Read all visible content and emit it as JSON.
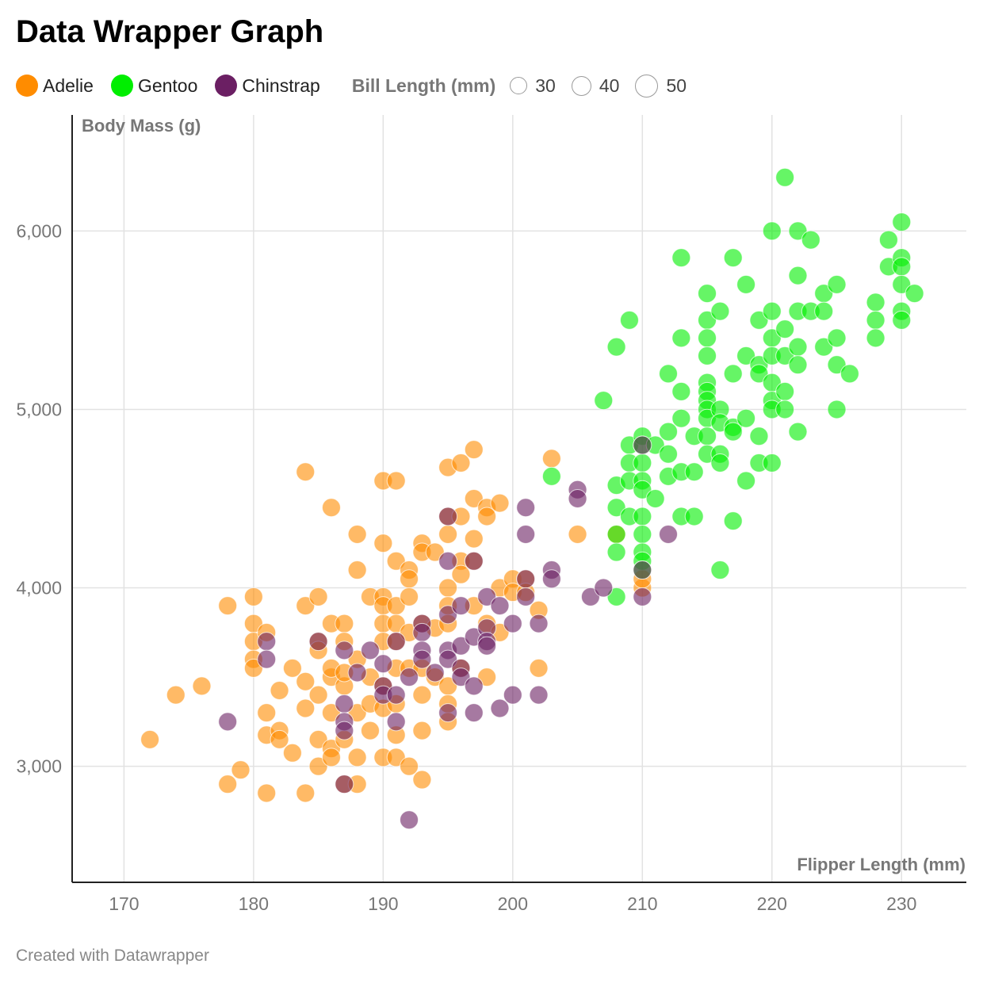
{
  "title": "Data Wrapper Graph",
  "footer": "Created with Datawrapper",
  "legend": {
    "species": [
      {
        "label": "Adelie",
        "color": "#ff8c00"
      },
      {
        "label": "Gentoo",
        "color": "#00ee00"
      },
      {
        "label": "Chinstrap",
        "color": "#6b1f63"
      }
    ],
    "size_title": "Bill Length (mm)",
    "sizes": [
      "30",
      "40",
      "50"
    ]
  },
  "chart_data": {
    "type": "scatter",
    "title": "Data Wrapper Graph",
    "xlabel": "Flipper Length (mm)",
    "ylabel": "Body Mass (g)",
    "xlim": [
      166,
      235
    ],
    "ylim": [
      2350,
      6650
    ],
    "x_ticks": [
      170,
      180,
      190,
      200,
      210,
      220,
      230
    ],
    "x_tick_labels": [
      "170",
      "180",
      "190",
      "200",
      "210",
      "220",
      "230"
    ],
    "y_ticks": [
      3000,
      4000,
      5000,
      6000
    ],
    "y_tick_labels": [
      "3,000",
      "4,000",
      "5,000",
      "6,000"
    ],
    "grid": true,
    "legend_position": "top-left",
    "series": [
      {
        "name": "Adelie",
        "color": "#ff8c00",
        "points": [
          [
            172,
            3150
          ],
          [
            174,
            3400
          ],
          [
            176,
            3450
          ],
          [
            178,
            3900
          ],
          [
            178,
            2900
          ],
          [
            179,
            2980
          ],
          [
            180,
            3950
          ],
          [
            180,
            3800
          ],
          [
            180,
            3700
          ],
          [
            180,
            3600
          ],
          [
            180,
            3550
          ],
          [
            181,
            3750
          ],
          [
            181,
            3300
          ],
          [
            181,
            3175
          ],
          [
            181,
            2850
          ],
          [
            182,
            3200
          ],
          [
            182,
            3150
          ],
          [
            182,
            3425
          ],
          [
            183,
            3550
          ],
          [
            183,
            3075
          ],
          [
            184,
            3900
          ],
          [
            184,
            3475
          ],
          [
            184,
            4650
          ],
          [
            184,
            3325
          ],
          [
            184,
            2850
          ],
          [
            185,
            3950
          ],
          [
            185,
            3700
          ],
          [
            185,
            3650
          ],
          [
            185,
            3400
          ],
          [
            185,
            3150
          ],
          [
            185,
            3000
          ],
          [
            186,
            3800
          ],
          [
            186,
            4450
          ],
          [
            186,
            3500
          ],
          [
            186,
            3550
          ],
          [
            186,
            3300
          ],
          [
            186,
            3100
          ],
          [
            186,
            3050
          ],
          [
            187,
            3800
          ],
          [
            187,
            3700
          ],
          [
            187,
            3450
          ],
          [
            187,
            3525
          ],
          [
            187,
            3150
          ],
          [
            187,
            2900
          ],
          [
            188,
            4300
          ],
          [
            188,
            4100
          ],
          [
            188,
            3600
          ],
          [
            188,
            3300
          ],
          [
            188,
            3050
          ],
          [
            188,
            2900
          ],
          [
            189,
            3950
          ],
          [
            189,
            3500
          ],
          [
            189,
            3350
          ],
          [
            189,
            3200
          ],
          [
            190,
            4600
          ],
          [
            190,
            4250
          ],
          [
            190,
            3950
          ],
          [
            190,
            3900
          ],
          [
            190,
            3800
          ],
          [
            190,
            3700
          ],
          [
            190,
            3450
          ],
          [
            190,
            3325
          ],
          [
            190,
            3050
          ],
          [
            191,
            4600
          ],
          [
            191,
            4150
          ],
          [
            191,
            3900
          ],
          [
            191,
            3800
          ],
          [
            191,
            3700
          ],
          [
            191,
            3550
          ],
          [
            191,
            3350
          ],
          [
            191,
            3175
          ],
          [
            191,
            3050
          ],
          [
            192,
            4100
          ],
          [
            192,
            4050
          ],
          [
            192,
            3950
          ],
          [
            192,
            3750
          ],
          [
            192,
            3550
          ],
          [
            192,
            3000
          ],
          [
            193,
            4250
          ],
          [
            193,
            4200
          ],
          [
            193,
            3800
          ],
          [
            193,
            3550
          ],
          [
            193,
            3400
          ],
          [
            193,
            3200
          ],
          [
            193,
            2925
          ],
          [
            194,
            4200
          ],
          [
            194,
            3775
          ],
          [
            194,
            3500
          ],
          [
            195,
            4675
          ],
          [
            195,
            4400
          ],
          [
            195,
            4300
          ],
          [
            195,
            4000
          ],
          [
            195,
            3900
          ],
          [
            195,
            3800
          ],
          [
            195,
            3450
          ],
          [
            195,
            3350
          ],
          [
            195,
            3250
          ],
          [
            196,
            4700
          ],
          [
            196,
            4400
          ],
          [
            196,
            4150
          ],
          [
            196,
            4075
          ],
          [
            196,
            3550
          ],
          [
            197,
            4775
          ],
          [
            197,
            4500
          ],
          [
            197,
            4275
          ],
          [
            197,
            4150
          ],
          [
            197,
            3900
          ],
          [
            198,
            4450
          ],
          [
            198,
            4400
          ],
          [
            198,
            3800
          ],
          [
            198,
            3500
          ],
          [
            199,
            4475
          ],
          [
            199,
            4000
          ],
          [
            199,
            3750
          ],
          [
            200,
            4050
          ],
          [
            200,
            3975
          ],
          [
            201,
            4050
          ],
          [
            201,
            3975
          ],
          [
            202,
            3875
          ],
          [
            202,
            3550
          ],
          [
            203,
            4725
          ],
          [
            205,
            4300
          ],
          [
            208,
            4300
          ],
          [
            210,
            4000
          ],
          [
            210,
            4050
          ]
        ]
      },
      {
        "name": "Gentoo",
        "color": "#00ee00",
        "points": [
          [
            203,
            4625
          ],
          [
            207,
            5050
          ],
          [
            208,
            4575
          ],
          [
            208,
            4450
          ],
          [
            208,
            4300
          ],
          [
            208,
            4200
          ],
          [
            208,
            5350
          ],
          [
            208,
            3950
          ],
          [
            209,
            5500
          ],
          [
            209,
            4800
          ],
          [
            209,
            4700
          ],
          [
            209,
            4600
          ],
          [
            209,
            4400
          ],
          [
            210,
            4850
          ],
          [
            210,
            4800
          ],
          [
            210,
            4700
          ],
          [
            210,
            4600
          ],
          [
            210,
            4550
          ],
          [
            210,
            4400
          ],
          [
            210,
            4300
          ],
          [
            210,
            4200
          ],
          [
            210,
            4150
          ],
          [
            210,
            4100
          ],
          [
            211,
            4800
          ],
          [
            211,
            4500
          ],
          [
            212,
            5200
          ],
          [
            212,
            4875
          ],
          [
            212,
            4750
          ],
          [
            212,
            4625
          ],
          [
            213,
            5850
          ],
          [
            213,
            5400
          ],
          [
            213,
            5100
          ],
          [
            213,
            4950
          ],
          [
            213,
            4650
          ],
          [
            213,
            4400
          ],
          [
            214,
            4850
          ],
          [
            214,
            4650
          ],
          [
            214,
            4400
          ],
          [
            215,
            5650
          ],
          [
            215,
            5500
          ],
          [
            215,
            5400
          ],
          [
            215,
            5300
          ],
          [
            215,
            5150
          ],
          [
            215,
            5100
          ],
          [
            215,
            5050
          ],
          [
            215,
            5000
          ],
          [
            215,
            4950
          ],
          [
            215,
            4850
          ],
          [
            215,
            4750
          ],
          [
            216,
            5550
          ],
          [
            216,
            5000
          ],
          [
            216,
            4925
          ],
          [
            216,
            4750
          ],
          [
            216,
            4700
          ],
          [
            216,
            4100
          ],
          [
            217,
            5850
          ],
          [
            217,
            5200
          ],
          [
            217,
            4900
          ],
          [
            217,
            4875
          ],
          [
            217,
            4375
          ],
          [
            218,
            5700
          ],
          [
            218,
            5300
          ],
          [
            218,
            4950
          ],
          [
            218,
            4600
          ],
          [
            219,
            5500
          ],
          [
            219,
            5250
          ],
          [
            219,
            5200
          ],
          [
            219,
            4850
          ],
          [
            219,
            4700
          ],
          [
            220,
            6000
          ],
          [
            220,
            5550
          ],
          [
            220,
            5400
          ],
          [
            220,
            5300
          ],
          [
            220,
            5150
          ],
          [
            220,
            5050
          ],
          [
            220,
            5000
          ],
          [
            220,
            4700
          ],
          [
            221,
            6300
          ],
          [
            221,
            5450
          ],
          [
            221,
            5300
          ],
          [
            221,
            5100
          ],
          [
            221,
            5000
          ],
          [
            222,
            6000
          ],
          [
            222,
            5750
          ],
          [
            222,
            5550
          ],
          [
            222,
            5350
          ],
          [
            222,
            5250
          ],
          [
            222,
            4875
          ],
          [
            223,
            5950
          ],
          [
            223,
            5550
          ],
          [
            224,
            5650
          ],
          [
            224,
            5550
          ],
          [
            224,
            5350
          ],
          [
            225,
            5700
          ],
          [
            225,
            5400
          ],
          [
            225,
            5250
          ],
          [
            225,
            5000
          ],
          [
            226,
            5200
          ],
          [
            228,
            5600
          ],
          [
            228,
            5500
          ],
          [
            228,
            5400
          ],
          [
            229,
            5950
          ],
          [
            229,
            5800
          ],
          [
            230,
            6050
          ],
          [
            230,
            5850
          ],
          [
            230,
            5800
          ],
          [
            230,
            5700
          ],
          [
            230,
            5550
          ],
          [
            230,
            5500
          ],
          [
            231,
            5650
          ]
        ]
      },
      {
        "name": "Chinstrap",
        "color": "#6b1f63",
        "points": [
          [
            178,
            3250
          ],
          [
            181,
            3700
          ],
          [
            181,
            3600
          ],
          [
            185,
            3700
          ],
          [
            187,
            3650
          ],
          [
            187,
            3350
          ],
          [
            187,
            3250
          ],
          [
            187,
            3200
          ],
          [
            187,
            2900
          ],
          [
            188,
            3525
          ],
          [
            189,
            3650
          ],
          [
            190,
            3575
          ],
          [
            190,
            3450
          ],
          [
            190,
            3400
          ],
          [
            191,
            3700
          ],
          [
            191,
            3400
          ],
          [
            191,
            3250
          ],
          [
            192,
            3500
          ],
          [
            192,
            2700
          ],
          [
            193,
            3800
          ],
          [
            193,
            3750
          ],
          [
            193,
            3650
          ],
          [
            193,
            3600
          ],
          [
            194,
            3525
          ],
          [
            195,
            4400
          ],
          [
            195,
            4150
          ],
          [
            195,
            3850
          ],
          [
            195,
            3650
          ],
          [
            195,
            3600
          ],
          [
            195,
            3300
          ],
          [
            196,
            3900
          ],
          [
            196,
            3675
          ],
          [
            196,
            3550
          ],
          [
            196,
            3500
          ],
          [
            197,
            4150
          ],
          [
            197,
            3725
          ],
          [
            197,
            3450
          ],
          [
            197,
            3300
          ],
          [
            198,
            3775
          ],
          [
            198,
            3700
          ],
          [
            198,
            3675
          ],
          [
            198,
            3950
          ],
          [
            199,
            3900
          ],
          [
            199,
            3325
          ],
          [
            200,
            3800
          ],
          [
            200,
            3400
          ],
          [
            201,
            4450
          ],
          [
            201,
            4300
          ],
          [
            201,
            4050
          ],
          [
            201,
            3950
          ],
          [
            202,
            3800
          ],
          [
            202,
            3400
          ],
          [
            203,
            4100
          ],
          [
            203,
            4050
          ],
          [
            205,
            4550
          ],
          [
            205,
            4500
          ],
          [
            206,
            3950
          ],
          [
            207,
            4000
          ],
          [
            210,
            4800
          ],
          [
            210,
            4100
          ],
          [
            210,
            3950
          ],
          [
            212,
            4300
          ]
        ]
      }
    ]
  }
}
